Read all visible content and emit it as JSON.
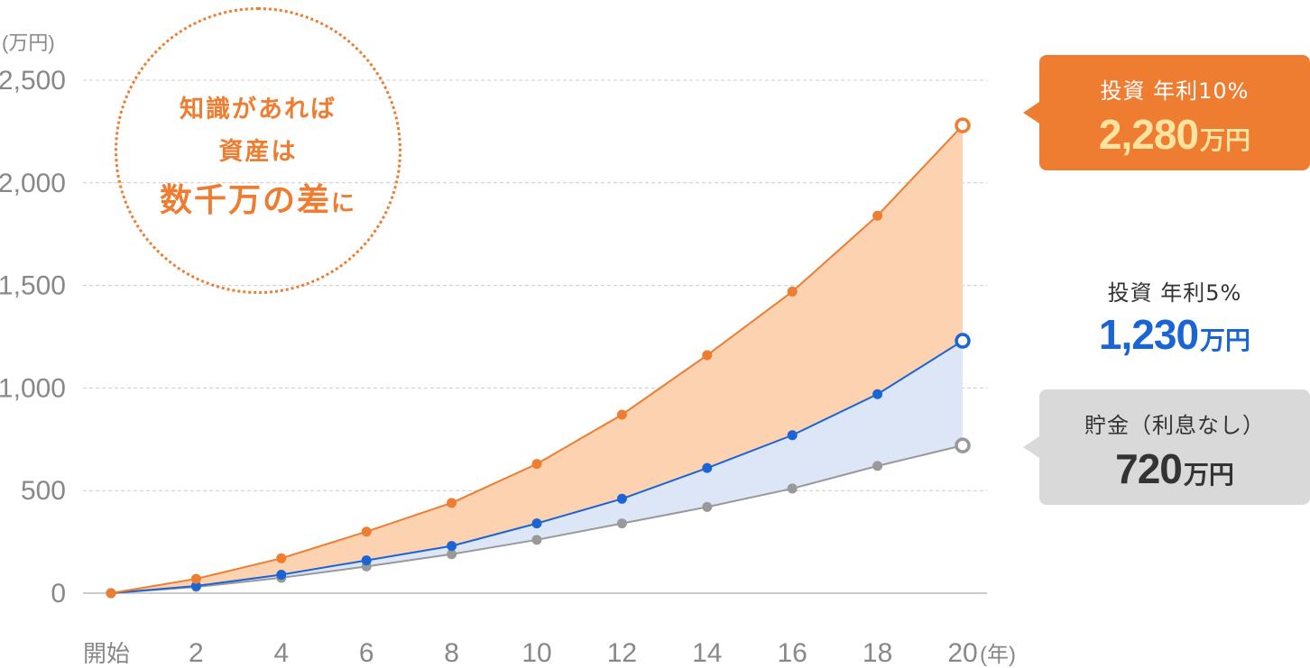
{
  "chart_data": {
    "type": "area",
    "y_unit": "(万円)",
    "x_unit": "(年)",
    "ylim": [
      0,
      2500
    ],
    "y_ticks": [
      "0",
      "500",
      "1,000",
      "1,500",
      "2,000",
      "2,500"
    ],
    "y_tick_values": [
      0,
      500,
      1000,
      1500,
      2000,
      2500
    ],
    "x_ticks": [
      "開始",
      "2",
      "4",
      "6",
      "8",
      "10",
      "12",
      "14",
      "16",
      "18",
      "20"
    ],
    "x": [
      0,
      2,
      4,
      6,
      8,
      10,
      12,
      14,
      16,
      18,
      20
    ],
    "grid": true,
    "series": [
      {
        "name": "投資 年利10%",
        "color": "#ee7d32",
        "fill": "#fdd2b0",
        "values": [
          0,
          70,
          170,
          300,
          440,
          630,
          870,
          1160,
          1470,
          1840,
          2280
        ]
      },
      {
        "name": "投資 年利5%",
        "color": "#1b64d4",
        "fill": "#dce6f7",
        "values": [
          0,
          35,
          90,
          160,
          230,
          340,
          460,
          610,
          770,
          970,
          1230
        ]
      },
      {
        "name": "貯金（利息なし）",
        "color": "#999999",
        "values": [
          0,
          30,
          75,
          130,
          190,
          260,
          340,
          420,
          510,
          620,
          720
        ]
      }
    ]
  },
  "callout": {
    "line1": "知識があれば",
    "line2": "資産は",
    "line3_main": "数千万の差",
    "line3_suffix": "に"
  },
  "badges": {
    "invest10": {
      "label": "投資 年利10%",
      "amount": "2,280",
      "unit": "万円"
    },
    "invest5": {
      "label": "投資 年利5%",
      "amount": "1,230",
      "unit": "万円"
    },
    "savings": {
      "label": "貯金（利息なし）",
      "amount": "720",
      "unit": "万円"
    }
  }
}
